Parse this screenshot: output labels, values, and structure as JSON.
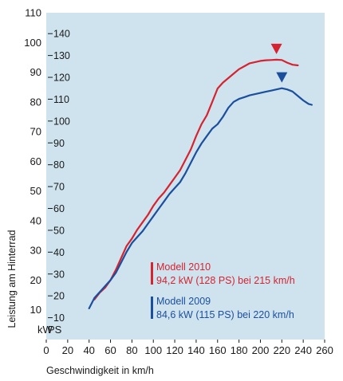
{
  "chart_data": {
    "type": "line",
    "title": "",
    "xlabel": "Geschwindigkeit in km/h",
    "ylabel": "Leistung am Hinterrad",
    "unit_kw": "kW",
    "unit_ps": "PS",
    "xlim": [
      0,
      260
    ],
    "ylim_kw": [
      0,
      110
    ],
    "x_ticks": [
      "0",
      "20",
      "40",
      "60",
      "80",
      "100",
      "120",
      "140",
      "160",
      "180",
      "200",
      "220",
      "240",
      "260"
    ],
    "kw_ticks": [
      "10",
      "20",
      "30",
      "40",
      "50",
      "60",
      "70",
      "80",
      "90",
      "100",
      "110"
    ],
    "ps_ticks": [
      "10",
      "20",
      "30",
      "40",
      "50",
      "60",
      "70",
      "80",
      "90",
      "100",
      "110",
      "120",
      "130",
      "140"
    ],
    "grid": false,
    "background": "#cfe3ef",
    "series": [
      {
        "name": "Modell 2010",
        "color": "#d5232f",
        "legend_detail": "94,2 kW (128 PS) bei 215 km/h",
        "peak": [
          215,
          94.2
        ],
        "points": [
          [
            45,
            13.5
          ],
          [
            50,
            15.8
          ],
          [
            55,
            17.5
          ],
          [
            60,
            20
          ],
          [
            65,
            23.5
          ],
          [
            70,
            27.5
          ],
          [
            75,
            31.5
          ],
          [
            80,
            34
          ],
          [
            85,
            37
          ],
          [
            90,
            39.5
          ],
          [
            95,
            42
          ],
          [
            100,
            45
          ],
          [
            105,
            47.5
          ],
          [
            110,
            49.5
          ],
          [
            115,
            52
          ],
          [
            120,
            54.5
          ],
          [
            125,
            57
          ],
          [
            130,
            60.5
          ],
          [
            135,
            64
          ],
          [
            140,
            68.5
          ],
          [
            145,
            72.5
          ],
          [
            150,
            75.5
          ],
          [
            155,
            80
          ],
          [
            160,
            84.5
          ],
          [
            165,
            86.5
          ],
          [
            170,
            88
          ],
          [
            175,
            89.5
          ],
          [
            180,
            91
          ],
          [
            185,
            92
          ],
          [
            190,
            93
          ],
          [
            195,
            93.4
          ],
          [
            200,
            93.8
          ],
          [
            205,
            94
          ],
          [
            210,
            94.1
          ],
          [
            215,
            94.2
          ],
          [
            220,
            94.1
          ],
          [
            225,
            93.2
          ],
          [
            230,
            92.5
          ],
          [
            235,
            92.3
          ]
        ]
      },
      {
        "name": "Modell 2009",
        "color": "#1b4f9c",
        "legend_detail": "84,6 kW (115 PS) bei 220 km/h",
        "peak": [
          220,
          84.6
        ],
        "points": [
          [
            40,
            10.5
          ],
          [
            45,
            14
          ],
          [
            50,
            16
          ],
          [
            55,
            18
          ],
          [
            60,
            20
          ],
          [
            65,
            22.5
          ],
          [
            70,
            26
          ],
          [
            75,
            29.5
          ],
          [
            80,
            32.5
          ],
          [
            85,
            34.5
          ],
          [
            90,
            36.5
          ],
          [
            95,
            39
          ],
          [
            100,
            41.5
          ],
          [
            105,
            44
          ],
          [
            110,
            46.5
          ],
          [
            115,
            49
          ],
          [
            120,
            51
          ],
          [
            125,
            53
          ],
          [
            130,
            56
          ],
          [
            135,
            59.5
          ],
          [
            140,
            63
          ],
          [
            145,
            66
          ],
          [
            150,
            68.5
          ],
          [
            155,
            71
          ],
          [
            160,
            72.5
          ],
          [
            165,
            75
          ],
          [
            170,
            78
          ],
          [
            175,
            80
          ],
          [
            180,
            81
          ],
          [
            185,
            81.6
          ],
          [
            190,
            82.2
          ],
          [
            195,
            82.6
          ],
          [
            200,
            83
          ],
          [
            205,
            83.4
          ],
          [
            210,
            83.8
          ],
          [
            215,
            84.2
          ],
          [
            220,
            84.6
          ],
          [
            225,
            84.2
          ],
          [
            230,
            83.5
          ],
          [
            235,
            82
          ],
          [
            240,
            80.5
          ],
          [
            245,
            79.3
          ],
          [
            248,
            79
          ]
        ]
      }
    ]
  }
}
